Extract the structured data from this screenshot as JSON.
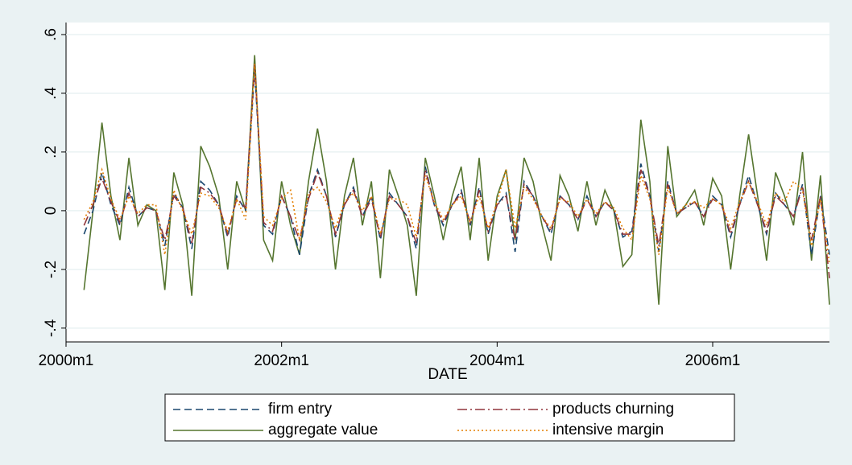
{
  "chart_data": {
    "type": "line",
    "x_label": "DATE",
    "x": [
      482,
      483,
      484,
      485,
      486,
      487,
      488,
      489,
      490,
      491,
      492,
      493,
      494,
      495,
      496,
      497,
      498,
      499,
      500,
      501,
      502,
      503,
      504,
      505,
      506,
      507,
      508,
      509,
      510,
      511,
      512,
      513,
      514,
      515,
      516,
      517,
      518,
      519,
      520,
      521,
      522,
      523,
      524,
      525,
      526,
      527,
      528,
      529,
      530,
      531,
      532,
      533,
      534,
      535,
      536,
      537,
      538,
      539,
      540,
      541,
      542,
      543,
      544,
      545,
      546,
      547,
      548,
      549,
      550,
      551,
      552,
      553,
      554,
      555,
      556,
      557,
      558,
      559,
      560,
      561,
      562,
      563,
      564,
      565
    ],
    "xlim": [
      480,
      565
    ],
    "xticks": [
      {
        "value": 480,
        "label": "2000m1"
      },
      {
        "value": 504,
        "label": "2002m1"
      },
      {
        "value": 528,
        "label": "2004m1"
      },
      {
        "value": 552,
        "label": "2006m1"
      }
    ],
    "ylim": [
      -0.447,
      0.641
    ],
    "yticks": [
      {
        "value": -0.4,
        "label": "-.4"
      },
      {
        "value": -0.2,
        "label": "-.2"
      },
      0,
      {
        "value": 0.2,
        "label": ".2"
      },
      {
        "value": 0.4,
        "label": ".4"
      },
      {
        "value": 0.6,
        "label": ".6"
      }
    ],
    "grid": true,
    "series": [
      {
        "name": "firm entry",
        "color": "#1a476f",
        "line_style": "dashed",
        "values": [
          -0.08,
          0.0,
          0.13,
          0.02,
          -0.05,
          0.08,
          -0.02,
          0.01,
          0.0,
          -0.12,
          0.06,
          0.01,
          -0.13,
          0.1,
          0.07,
          0.02,
          -0.09,
          0.05,
          0.0,
          0.48,
          -0.05,
          -0.08,
          0.05,
          -0.02,
          -0.15,
          0.05,
          0.14,
          0.05,
          -0.09,
          0.02,
          0.08,
          -0.02,
          0.05,
          -0.1,
          0.06,
          0.02,
          -0.02,
          -0.13,
          0.15,
          0.02,
          -0.05,
          0.02,
          0.07,
          -0.05,
          0.08,
          -0.08,
          0.02,
          0.06,
          -0.14,
          0.1,
          0.05,
          -0.02,
          -0.08,
          0.05,
          0.02,
          -0.03,
          0.05,
          -0.02,
          0.03,
          0.0,
          -0.09,
          -0.07,
          0.16,
          0.05,
          -0.14,
          0.1,
          -0.01,
          0.01,
          0.03,
          -0.02,
          0.05,
          0.02,
          -0.09,
          0.02,
          0.12,
          0.02,
          -0.08,
          0.06,
          0.02,
          -0.02,
          0.09,
          -0.15,
          0.05,
          -0.15
        ]
      },
      {
        "name": "products churning",
        "color": "#90353b",
        "line_style": "dashdot",
        "values": [
          -0.05,
          0.02,
          0.11,
          0.03,
          -0.04,
          0.06,
          -0.02,
          0.01,
          0.0,
          -0.1,
          0.05,
          0.01,
          -0.11,
          0.08,
          0.06,
          0.02,
          -0.08,
          0.04,
          0.01,
          0.5,
          -0.04,
          -0.07,
          0.05,
          -0.02,
          -0.1,
          0.04,
          0.13,
          0.05,
          -0.08,
          0.02,
          0.07,
          -0.02,
          0.04,
          -0.09,
          0.05,
          0.02,
          -0.02,
          -0.11,
          0.14,
          0.02,
          -0.04,
          0.02,
          0.06,
          -0.04,
          0.07,
          -0.07,
          0.02,
          0.05,
          -0.1,
          0.09,
          0.05,
          -0.02,
          -0.07,
          0.05,
          0.02,
          -0.03,
          0.04,
          -0.02,
          0.03,
          0.0,
          -0.08,
          -0.08,
          0.14,
          0.05,
          -0.12,
          0.09,
          -0.01,
          0.01,
          0.03,
          -0.02,
          0.04,
          0.02,
          -0.08,
          0.02,
          0.1,
          0.02,
          -0.07,
          0.05,
          0.02,
          -0.02,
          0.08,
          -0.1,
          0.05,
          -0.23
        ]
      },
      {
        "name": "aggregate value",
        "color": "#55752f",
        "line_style": "solid",
        "values": [
          -0.27,
          0.0,
          0.3,
          0.05,
          -0.1,
          0.18,
          -0.05,
          0.02,
          0.0,
          -0.27,
          0.13,
          0.02,
          -0.29,
          0.22,
          0.15,
          0.05,
          -0.2,
          0.1,
          0.0,
          0.53,
          -0.1,
          -0.17,
          0.1,
          -0.05,
          -0.15,
          0.1,
          0.28,
          0.1,
          -0.2,
          0.05,
          0.18,
          -0.05,
          0.1,
          -0.23,
          0.14,
          0.05,
          -0.05,
          -0.29,
          0.18,
          0.05,
          -0.1,
          0.05,
          0.15,
          -0.1,
          0.18,
          -0.17,
          0.05,
          0.14,
          -0.1,
          0.18,
          0.1,
          -0.05,
          -0.17,
          0.12,
          0.05,
          -0.07,
          0.1,
          -0.05,
          0.07,
          0.0,
          -0.19,
          -0.15,
          0.31,
          0.1,
          -0.32,
          0.22,
          -0.02,
          0.02,
          0.07,
          -0.05,
          0.11,
          0.05,
          -0.2,
          0.05,
          0.26,
          0.05,
          -0.17,
          0.13,
          0.05,
          -0.05,
          0.2,
          -0.17,
          0.12,
          -0.32
        ]
      },
      {
        "name": "intensive margin",
        "color": "#e37e00",
        "line_style": "dotted",
        "values": [
          -0.03,
          0.03,
          0.14,
          0.04,
          -0.03,
          0.05,
          -0.01,
          0.02,
          0.02,
          -0.15,
          0.07,
          0.0,
          -0.08,
          0.06,
          0.05,
          0.01,
          -0.07,
          0.04,
          -0.03,
          0.5,
          -0.02,
          -0.05,
          0.04,
          0.07,
          -0.1,
          0.06,
          0.08,
          0.03,
          -0.06,
          0.03,
          0.06,
          0.0,
          0.05,
          -0.08,
          0.04,
          0.04,
          0.02,
          -0.09,
          0.12,
          0.03,
          -0.03,
          0.02,
          0.05,
          -0.04,
          0.05,
          -0.06,
          0.03,
          0.14,
          -0.06,
          0.08,
          0.04,
          -0.02,
          -0.06,
          0.04,
          0.03,
          -0.02,
          0.04,
          -0.01,
          0.03,
          0.01,
          -0.06,
          -0.1,
          0.12,
          0.04,
          -0.15,
          0.08,
          -0.01,
          0.02,
          0.03,
          0.01,
          0.04,
          0.02,
          -0.06,
          0.03,
          0.1,
          0.03,
          -0.05,
          0.06,
          0.03,
          0.1,
          0.07,
          -0.12,
          0.04,
          -0.18
        ]
      }
    ]
  }
}
